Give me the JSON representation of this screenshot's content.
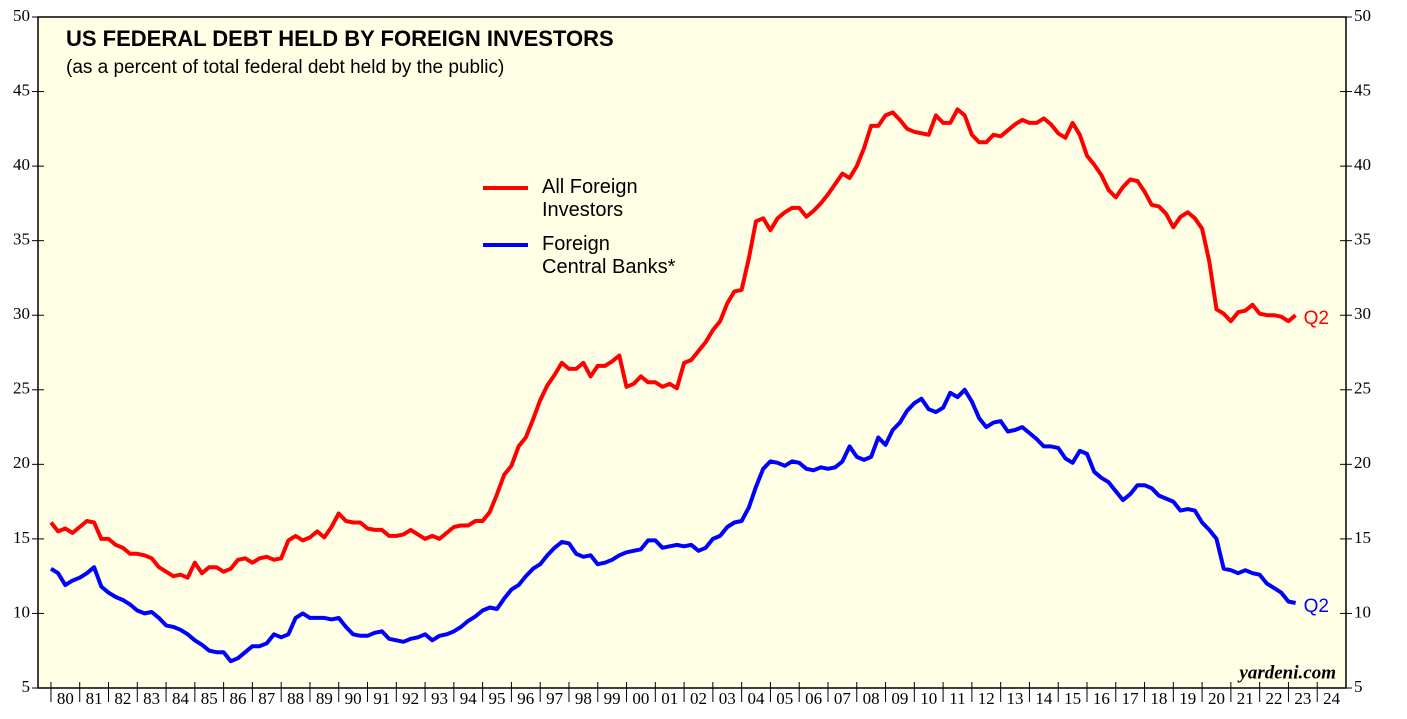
{
  "chart_data": {
    "type": "line",
    "title": "US FEDERAL DEBT HELD BY FOREIGN INVESTORS",
    "subtitle": "(as a percent of total federal debt held by the public)",
    "source": "yardeni.com",
    "x": [
      1980,
      1980.25,
      1980.5,
      1980.75,
      1981,
      1981.25,
      1981.5,
      1981.75,
      1982,
      1982.25,
      1982.5,
      1982.75,
      1983,
      1983.25,
      1983.5,
      1983.75,
      1984,
      1984.25,
      1984.5,
      1984.75,
      1985,
      1985.25,
      1985.5,
      1985.75,
      1986,
      1986.25,
      1986.5,
      1986.75,
      1987,
      1987.25,
      1987.5,
      1987.75,
      1988,
      1988.25,
      1988.5,
      1988.75,
      1989,
      1989.25,
      1989.5,
      1989.75,
      1990,
      1990.25,
      1990.5,
      1990.75,
      1991,
      1991.25,
      1991.5,
      1991.75,
      1992,
      1992.25,
      1992.5,
      1992.75,
      1993,
      1993.25,
      1993.5,
      1993.75,
      1994,
      1994.25,
      1994.5,
      1994.75,
      1995,
      1995.25,
      1995.5,
      1995.75,
      1996,
      1996.25,
      1996.5,
      1996.75,
      1997,
      1997.25,
      1997.5,
      1997.75,
      1998,
      1998.25,
      1998.5,
      1998.75,
      1999,
      1999.25,
      1999.5,
      1999.75,
      2000,
      2000.25,
      2000.5,
      2000.75,
      2001,
      2001.25,
      2001.5,
      2001.75,
      2002,
      2002.25,
      2002.5,
      2002.75,
      2003,
      2003.25,
      2003.5,
      2003.75,
      2004,
      2004.25,
      2004.5,
      2004.75,
      2005,
      2005.25,
      2005.5,
      2005.75,
      2006,
      2006.25,
      2006.5,
      2006.75,
      2007,
      2007.25,
      2007.5,
      2007.75,
      2008,
      2008.25,
      2008.5,
      2008.75,
      2009,
      2009.25,
      2009.5,
      2009.75,
      2010,
      2010.25,
      2010.5,
      2010.75,
      2011,
      2011.25,
      2011.5,
      2011.75,
      2012,
      2012.25,
      2012.5,
      2012.75,
      2013,
      2013.25,
      2013.5,
      2013.75,
      2014,
      2014.25,
      2014.5,
      2014.75,
      2015,
      2015.25,
      2015.5,
      2015.75,
      2016,
      2016.25,
      2016.5,
      2016.75,
      2017,
      2017.25,
      2017.5,
      2017.75,
      2018,
      2018.25,
      2018.5,
      2018.75,
      2019,
      2019.25,
      2019.5,
      2019.75,
      2020,
      2020.25,
      2020.5,
      2020.75,
      2021,
      2021.25,
      2021.5,
      2021.75,
      2022,
      2022.25,
      2022.5,
      2022.75,
      2023,
      2023.25
    ],
    "series": [
      {
        "name": "All Foreign\nInvestors",
        "color": "#ff0000",
        "end_label": "Q2",
        "values": [
          16.1,
          15.5,
          15.7,
          15.4,
          15.8,
          16.2,
          16.1,
          15.0,
          15.0,
          14.6,
          14.4,
          14.0,
          14.0,
          13.9,
          13.7,
          13.1,
          12.8,
          12.5,
          12.6,
          12.4,
          13.4,
          12.7,
          13.1,
          13.1,
          12.8,
          13.0,
          13.6,
          13.7,
          13.4,
          13.7,
          13.8,
          13.6,
          13.7,
          14.9,
          15.2,
          14.9,
          15.1,
          15.5,
          15.1,
          15.8,
          16.7,
          16.2,
          16.1,
          16.1,
          15.7,
          15.6,
          15.6,
          15.2,
          15.2,
          15.3,
          15.6,
          15.3,
          15.0,
          15.2,
          15.0,
          15.4,
          15.8,
          15.9,
          15.9,
          16.2,
          16.2,
          16.8,
          18.0,
          19.3,
          19.9,
          21.2,
          21.8,
          23.0,
          24.3,
          25.3,
          26.0,
          26.8,
          26.4,
          26.4,
          26.8,
          25.9,
          26.6,
          26.6,
          26.9,
          27.3,
          25.2,
          25.4,
          25.9,
          25.5,
          25.5,
          25.2,
          25.4,
          25.1,
          26.8,
          27.0,
          27.6,
          28.2,
          29.0,
          29.6,
          30.8,
          31.6,
          31.7,
          33.8,
          36.3,
          36.5,
          35.7,
          36.5,
          36.9,
          37.2,
          37.2,
          36.6,
          37.0,
          37.5,
          38.1,
          38.8,
          39.5,
          39.2,
          40.0,
          41.2,
          42.7,
          42.7,
          43.4,
          43.6,
          43.1,
          42.5,
          42.3,
          42.2,
          42.1,
          43.4,
          42.9,
          42.9,
          43.8,
          43.4,
          42.1,
          41.6,
          41.6,
          42.1,
          42.0,
          42.4,
          42.8,
          43.1,
          42.9,
          42.9,
          43.2,
          42.8,
          42.2,
          41.9,
          42.9,
          42.1,
          40.7,
          40.1,
          39.4,
          38.4,
          37.9,
          38.6,
          39.1,
          39.0,
          38.3,
          37.4,
          37.3,
          36.8,
          35.9,
          36.6,
          36.9,
          36.5,
          35.8,
          33.6,
          30.4,
          30.1,
          29.6,
          30.2,
          30.3,
          30.7,
          30.1,
          30.0,
          30.0,
          29.9,
          29.6,
          30.0
        ]
      },
      {
        "name": "Foreign\nCentral Banks*",
        "color": "#0000ff",
        "end_label": "Q2",
        "values": [
          13.0,
          12.7,
          11.9,
          12.2,
          12.4,
          12.7,
          13.1,
          11.8,
          11.4,
          11.1,
          10.9,
          10.6,
          10.2,
          10.0,
          10.1,
          9.7,
          9.2,
          9.1,
          8.9,
          8.6,
          8.2,
          7.9,
          7.5,
          7.4,
          7.4,
          6.8,
          7.0,
          7.4,
          7.8,
          7.8,
          8.0,
          8.6,
          8.4,
          8.6,
          9.7,
          10.0,
          9.7,
          9.7,
          9.7,
          9.6,
          9.7,
          9.1,
          8.6,
          8.5,
          8.5,
          8.7,
          8.8,
          8.3,
          8.2,
          8.1,
          8.3,
          8.4,
          8.6,
          8.2,
          8.5,
          8.6,
          8.8,
          9.1,
          9.5,
          9.8,
          10.2,
          10.4,
          10.3,
          11.0,
          11.6,
          11.9,
          12.5,
          13.0,
          13.3,
          13.9,
          14.4,
          14.8,
          14.7,
          14.0,
          13.8,
          13.9,
          13.3,
          13.4,
          13.6,
          13.9,
          14.1,
          14.2,
          14.3,
          14.9,
          14.9,
          14.4,
          14.5,
          14.6,
          14.5,
          14.6,
          14.2,
          14.4,
          15.0,
          15.2,
          15.8,
          16.1,
          16.2,
          17.1,
          18.5,
          19.7,
          20.2,
          20.1,
          19.9,
          20.2,
          20.1,
          19.7,
          19.6,
          19.8,
          19.7,
          19.8,
          20.2,
          21.2,
          20.5,
          20.3,
          20.5,
          21.8,
          21.3,
          22.3,
          22.8,
          23.6,
          24.1,
          24.4,
          23.7,
          23.5,
          23.8,
          24.8,
          24.5,
          25.0,
          24.2,
          23.1,
          22.5,
          22.8,
          22.9,
          22.2,
          22.3,
          22.5,
          22.1,
          21.7,
          21.2,
          21.2,
          21.1,
          20.4,
          20.1,
          20.9,
          20.7,
          19.5,
          19.1,
          18.8,
          18.2,
          17.6,
          18.0,
          18.6,
          18.6,
          18.4,
          17.9,
          17.7,
          17.5,
          16.9,
          17.0,
          16.9,
          16.1,
          15.6,
          15.0,
          13.0,
          12.9,
          12.7,
          12.9,
          12.7,
          12.6,
          12.0,
          11.7,
          11.4,
          10.8,
          10.7
        ]
      }
    ],
    "xlim": [
      1979.55,
      2025
    ],
    "xticks": [
      {
        "value": 1980,
        "label": "80"
      },
      {
        "value": 1981,
        "label": "81"
      },
      {
        "value": 1982,
        "label": "82"
      },
      {
        "value": 1983,
        "label": "83"
      },
      {
        "value": 1984,
        "label": "84"
      },
      {
        "value": 1985,
        "label": "85"
      },
      {
        "value": 1986,
        "label": "86"
      },
      {
        "value": 1987,
        "label": "87"
      },
      {
        "value": 1988,
        "label": "88"
      },
      {
        "value": 1989,
        "label": "89"
      },
      {
        "value": 1990,
        "label": "90"
      },
      {
        "value": 1991,
        "label": "91"
      },
      {
        "value": 1992,
        "label": "92"
      },
      {
        "value": 1993,
        "label": "93"
      },
      {
        "value": 1994,
        "label": "94"
      },
      {
        "value": 1995,
        "label": "95"
      },
      {
        "value": 1996,
        "label": "96"
      },
      {
        "value": 1997,
        "label": "97"
      },
      {
        "value": 1998,
        "label": "98"
      },
      {
        "value": 1999,
        "label": "99"
      },
      {
        "value": 2000,
        "label": "00"
      },
      {
        "value": 2001,
        "label": "01"
      },
      {
        "value": 2002,
        "label": "02"
      },
      {
        "value": 2003,
        "label": "03"
      },
      {
        "value": 2004,
        "label": "04"
      },
      {
        "value": 2005,
        "label": "05"
      },
      {
        "value": 2006,
        "label": "06"
      },
      {
        "value": 2007,
        "label": "07"
      },
      {
        "value": 2008,
        "label": "08"
      },
      {
        "value": 2009,
        "label": "09"
      },
      {
        "value": 2010,
        "label": "10"
      },
      {
        "value": 2011,
        "label": "11"
      },
      {
        "value": 2012,
        "label": "12"
      },
      {
        "value": 2013,
        "label": "13"
      },
      {
        "value": 2014,
        "label": "14"
      },
      {
        "value": 2015,
        "label": "15"
      },
      {
        "value": 2016,
        "label": "16"
      },
      {
        "value": 2017,
        "label": "17"
      },
      {
        "value": 2018,
        "label": "18"
      },
      {
        "value": 2019,
        "label": "19"
      },
      {
        "value": 2020,
        "label": "20"
      },
      {
        "value": 2021,
        "label": "21"
      },
      {
        "value": 2022,
        "label": "22"
      },
      {
        "value": 2023,
        "label": "23"
      },
      {
        "value": 2024,
        "label": "24"
      }
    ],
    "ylim": [
      5,
      50
    ],
    "yticks": [
      5,
      10,
      15,
      20,
      25,
      30,
      35,
      40,
      45,
      50
    ],
    "grid": false
  }
}
